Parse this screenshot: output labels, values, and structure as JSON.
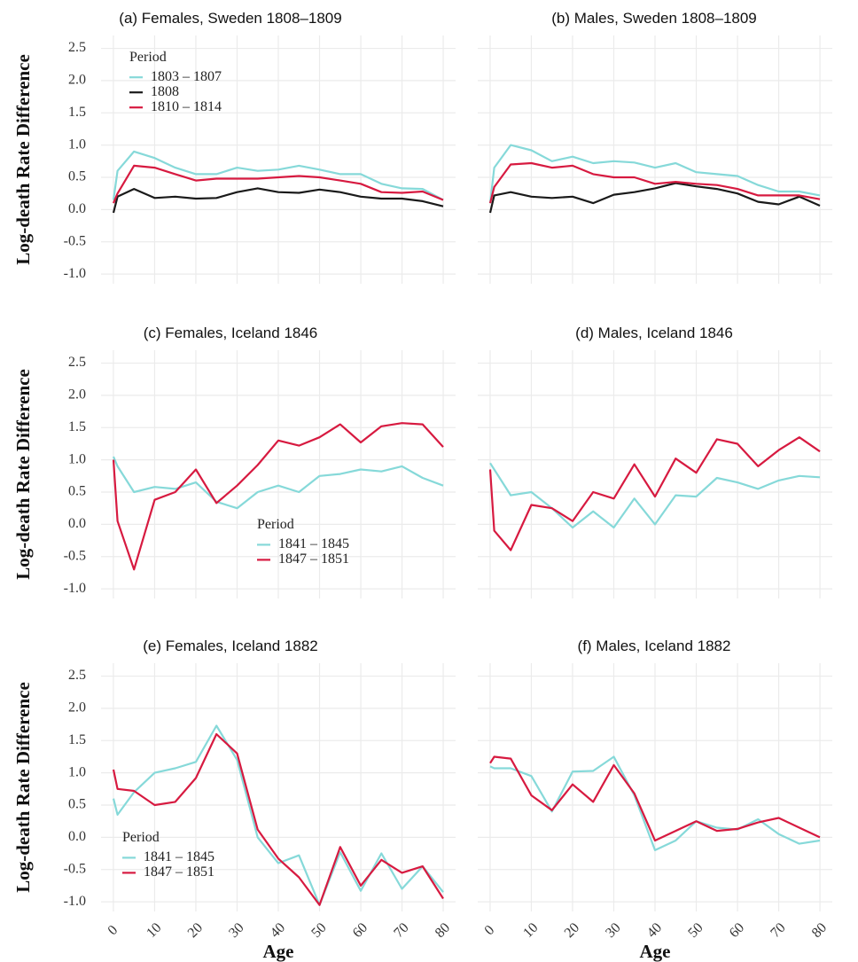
{
  "chart_data": [
    {
      "type": "line",
      "title": "(a) Females, Sweden 1808–1809",
      "ylabel": "Log-death Rate Difference",
      "x": [
        0,
        1,
        5,
        10,
        15,
        20,
        25,
        30,
        35,
        40,
        45,
        50,
        55,
        60,
        65,
        70,
        75,
        80
      ],
      "xlim": [
        -3,
        83
      ],
      "xticks": [
        0,
        10,
        20,
        30,
        40,
        50,
        60,
        70,
        80
      ],
      "ylim": [
        -1.15,
        2.7
      ],
      "yticks": [
        2.5,
        {
          "value": 2,
          "label": "2.0"
        },
        1.5,
        {
          "value": 1,
          "label": "1.0"
        },
        0.5,
        {
          "value": 0,
          "label": "0.0"
        },
        -0.5,
        {
          "value": -1,
          "label": "-1.0"
        }
      ],
      "grid": true,
      "legend": "upper left",
      "legend_title": "Period",
      "series": [
        {
          "name": "1803 – 1807",
          "color": "#86d9d9",
          "values": [
            0.15,
            0.6,
            0.9,
            0.8,
            0.65,
            0.55,
            0.55,
            0.65,
            0.6,
            0.62,
            0.68,
            0.62,
            0.55,
            0.55,
            0.4,
            0.33,
            0.32,
            0.15
          ]
        },
        {
          "name": "1808",
          "color": "#1a1a1a",
          "values": [
            -0.05,
            0.2,
            0.32,
            0.18,
            0.2,
            0.17,
            0.18,
            0.27,
            0.33,
            0.27,
            0.26,
            0.31,
            0.27,
            0.2,
            0.17,
            0.17,
            0.13,
            0.05
          ]
        },
        {
          "name": "1810 – 1814",
          "color": "#d71a40",
          "values": [
            0.1,
            0.25,
            0.68,
            0.65,
            0.55,
            0.45,
            0.48,
            0.48,
            0.48,
            0.5,
            0.52,
            0.5,
            0.45,
            0.4,
            0.27,
            0.26,
            0.28,
            0.15
          ]
        }
      ]
    },
    {
      "type": "line",
      "title": "(b) Males, Sweden 1808–1809",
      "x": [
        0,
        1,
        5,
        10,
        15,
        20,
        25,
        30,
        35,
        40,
        45,
        50,
        55,
        60,
        65,
        70,
        75,
        80
      ],
      "xlim": [
        -3,
        83
      ],
      "xticks": [
        0,
        10,
        20,
        30,
        40,
        50,
        60,
        70,
        80
      ],
      "ylim": [
        -1.15,
        2.7
      ],
      "yticks": [
        2.5,
        2,
        1.5,
        1,
        0.5,
        0,
        -0.5,
        -1
      ],
      "grid": true,
      "series": [
        {
          "color": "#86d9d9",
          "values": [
            0.1,
            0.65,
            1.0,
            0.92,
            0.75,
            0.82,
            0.72,
            0.75,
            0.73,
            0.65,
            0.72,
            0.58,
            0.55,
            0.52,
            0.38,
            0.28,
            0.28,
            0.22
          ]
        },
        {
          "color": "#1a1a1a",
          "values": [
            -0.05,
            0.22,
            0.27,
            0.2,
            0.18,
            0.2,
            0.1,
            0.23,
            0.27,
            0.33,
            0.41,
            0.36,
            0.32,
            0.25,
            0.12,
            0.08,
            0.2,
            0.06
          ]
        },
        {
          "color": "#d71a40",
          "values": [
            0.1,
            0.35,
            0.7,
            0.72,
            0.65,
            0.68,
            0.55,
            0.5,
            0.5,
            0.4,
            0.43,
            0.4,
            0.38,
            0.32,
            0.22,
            0.22,
            0.22,
            0.16
          ]
        }
      ]
    },
    {
      "type": "line",
      "title": "(c) Females, Iceland 1846",
      "ylabel": "Log-death Rate Difference",
      "x": [
        0,
        1,
        5,
        10,
        15,
        20,
        25,
        30,
        35,
        40,
        45,
        50,
        55,
        60,
        65,
        70,
        75,
        80
      ],
      "xlim": [
        -3,
        83
      ],
      "xticks": [
        0,
        10,
        20,
        30,
        40,
        50,
        60,
        70,
        80
      ],
      "ylim": [
        -1.15,
        2.7
      ],
      "yticks": [
        2.5,
        {
          "value": 2,
          "label": "2.0"
        },
        1.5,
        {
          "value": 1,
          "label": "1.0"
        },
        0.5,
        {
          "value": 0,
          "label": "0.0"
        },
        -0.5,
        {
          "value": -1,
          "label": "-1.0"
        }
      ],
      "grid": true,
      "legend": "center",
      "legend_title": "Period",
      "series": [
        {
          "name": "1841 – 1845",
          "color": "#86d9d9",
          "values": [
            1.05,
            0.9,
            0.5,
            0.58,
            0.55,
            0.65,
            0.35,
            0.25,
            0.5,
            0.6,
            0.5,
            0.75,
            0.78,
            0.85,
            0.82,
            0.9,
            0.72,
            0.6
          ]
        },
        {
          "name": "1847 – 1851",
          "color": "#d71a40",
          "values": [
            1.0,
            0.05,
            -0.7,
            0.38,
            0.5,
            0.85,
            0.33,
            0.6,
            0.92,
            1.3,
            1.22,
            1.35,
            1.55,
            1.27,
            1.52,
            1.57,
            1.55,
            1.2
          ]
        }
      ]
    },
    {
      "type": "line",
      "title": "(d) Males, Iceland 1846",
      "x": [
        0,
        1,
        5,
        10,
        15,
        20,
        25,
        30,
        35,
        40,
        45,
        50,
        55,
        60,
        65,
        70,
        75,
        80
      ],
      "xlim": [
        -3,
        83
      ],
      "xticks": [
        0,
        10,
        20,
        30,
        40,
        50,
        60,
        70,
        80
      ],
      "ylim": [
        -1.15,
        2.7
      ],
      "yticks": [
        2.5,
        2,
        1.5,
        1,
        0.5,
        0,
        -0.5,
        -1
      ],
      "grid": true,
      "series": [
        {
          "color": "#86d9d9",
          "values": [
            0.95,
            0.85,
            0.45,
            0.5,
            0.25,
            -0.05,
            0.2,
            -0.05,
            0.4,
            0.0,
            0.45,
            0.43,
            0.72,
            0.65,
            0.55,
            0.68,
            0.75,
            0.73
          ]
        },
        {
          "color": "#d71a40",
          "values": [
            0.85,
            -0.1,
            -0.4,
            0.3,
            0.25,
            0.05,
            0.5,
            0.4,
            0.93,
            0.43,
            1.02,
            0.8,
            1.32,
            1.25,
            0.9,
            1.15,
            1.35,
            1.13
          ]
        }
      ]
    },
    {
      "type": "line",
      "title": "(e) Females, Iceland 1882",
      "ylabel": "Log-death Rate Difference",
      "xlabel": "Age",
      "x": [
        0,
        1,
        5,
        10,
        15,
        20,
        25,
        30,
        35,
        40,
        45,
        50,
        55,
        60,
        65,
        70,
        75,
        80
      ],
      "xlim": [
        -3,
        83
      ],
      "xticks": [
        0,
        10,
        20,
        30,
        40,
        50,
        60,
        70,
        80
      ],
      "ylim": [
        -1.15,
        2.7
      ],
      "yticks": [
        2.5,
        {
          "value": 2,
          "label": "2.0"
        },
        1.5,
        {
          "value": 1,
          "label": "1.0"
        },
        0.5,
        {
          "value": 0,
          "label": "0.0"
        },
        -0.5,
        {
          "value": -1,
          "label": "-1.0"
        }
      ],
      "grid": true,
      "legend": "lower left",
      "legend_title": "Period",
      "series": [
        {
          "name": "1841 – 1845",
          "color": "#86d9d9",
          "values": [
            0.6,
            0.35,
            0.7,
            1.0,
            1.07,
            1.17,
            1.73,
            1.2,
            0.0,
            -0.4,
            -0.28,
            -1.05,
            -0.23,
            -0.83,
            -0.25,
            -0.8,
            -0.45,
            -0.85
          ]
        },
        {
          "name": "1847 – 1851",
          "color": "#d71a40",
          "values": [
            1.05,
            0.75,
            0.72,
            0.5,
            0.55,
            0.92,
            1.6,
            1.3,
            0.12,
            -0.33,
            -0.62,
            -1.05,
            -0.15,
            -0.75,
            -0.35,
            -0.55,
            -0.45,
            -0.95
          ]
        }
      ]
    },
    {
      "type": "line",
      "title": "(f) Males, Iceland 1882",
      "xlabel": "Age",
      "x": [
        0,
        1,
        5,
        10,
        15,
        20,
        25,
        30,
        35,
        40,
        45,
        50,
        55,
        60,
        65,
        70,
        75,
        80
      ],
      "xlim": [
        -3,
        83
      ],
      "xticks": [
        0,
        10,
        20,
        30,
        40,
        50,
        60,
        70,
        80
      ],
      "ylim": [
        -1.15,
        2.7
      ],
      "yticks": [
        2.5,
        2,
        1.5,
        1,
        0.5,
        0,
        -0.5,
        -1
      ],
      "grid": true,
      "series": [
        {
          "color": "#86d9d9",
          "values": [
            1.1,
            1.07,
            1.07,
            0.95,
            0.4,
            1.02,
            1.03,
            1.25,
            0.65,
            -0.2,
            -0.05,
            0.25,
            0.15,
            0.12,
            0.28,
            0.05,
            -0.1,
            -0.05
          ]
        },
        {
          "color": "#d71a40",
          "values": [
            1.15,
            1.25,
            1.22,
            0.65,
            0.42,
            0.82,
            0.55,
            1.12,
            0.68,
            -0.05,
            0.1,
            0.25,
            0.1,
            0.13,
            0.23,
            0.3,
            0.15,
            0.0
          ]
        }
      ]
    }
  ]
}
